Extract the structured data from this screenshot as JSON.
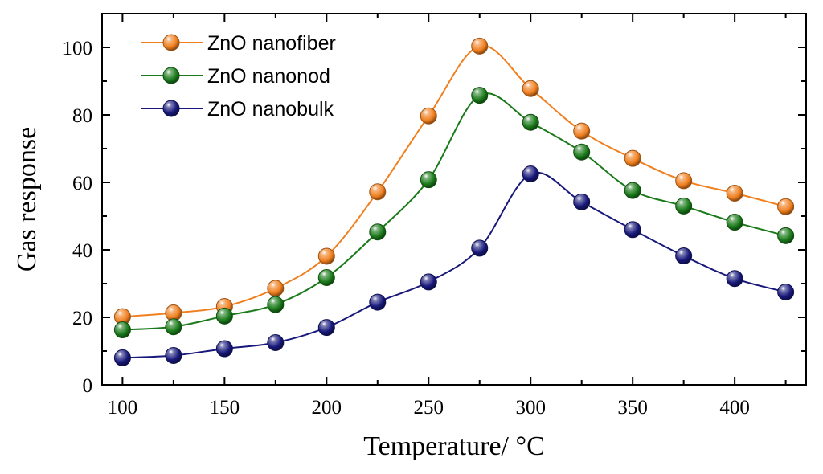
{
  "chart_data": {
    "type": "line",
    "xlabel": "Temperature/ °C",
    "ylabel": "Gas response",
    "xlim": [
      90,
      435
    ],
    "ylim": [
      0,
      110
    ],
    "x_ticks": [
      100,
      150,
      200,
      250,
      300,
      350,
      400
    ],
    "y_ticks": [
      0,
      20,
      40,
      60,
      80,
      100
    ],
    "x_minor_step": 25,
    "y_minor_step": 10,
    "grid": false,
    "legend_position": "top-left",
    "x": [
      100,
      125,
      150,
      175,
      200,
      225,
      250,
      275,
      300,
      325,
      350,
      375,
      400,
      425
    ],
    "series": [
      {
        "name": "ZnO nanofiber",
        "color": "#f07f1f",
        "values": [
          20.2,
          21.3,
          23.2,
          28.6,
          38.1,
          57.2,
          79.7,
          100.4,
          87.8,
          75.2,
          67.1,
          60.5,
          56.8,
          52.8
        ]
      },
      {
        "name": "ZnO nanonod",
        "color": "#1a7a1a",
        "values": [
          16.3,
          17.2,
          20.4,
          23.8,
          31.8,
          45.3,
          60.8,
          85.8,
          77.8,
          69.0,
          57.6,
          53.0,
          48.2,
          44.2
        ]
      },
      {
        "name": "ZnO nanobulk",
        "color": "#17187a",
        "values": [
          8.0,
          8.7,
          10.7,
          12.5,
          17.0,
          24.5,
          30.5,
          40.5,
          62.5,
          54.2,
          46.0,
          38.2,
          31.5,
          27.5
        ]
      }
    ]
  }
}
